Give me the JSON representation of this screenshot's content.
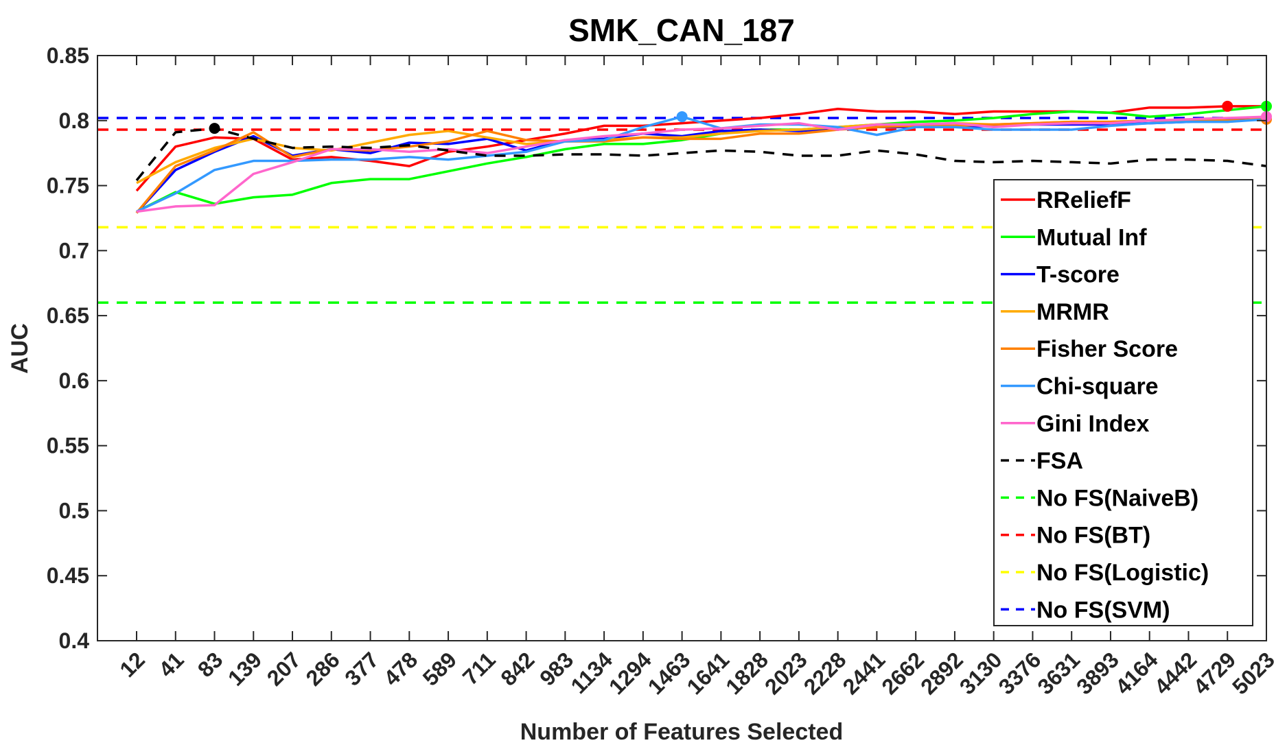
{
  "chart_data": {
    "type": "line",
    "title": "SMK_CAN_187",
    "xlabel": "Number of Features Selected",
    "ylabel": "AUC",
    "categories": [
      "12",
      "41",
      "83",
      "139",
      "207",
      "286",
      "377",
      "478",
      "589",
      "711",
      "842",
      "983",
      "1134",
      "1294",
      "1463",
      "1641",
      "1828",
      "2023",
      "2228",
      "2441",
      "2662",
      "2892",
      "3130",
      "3376",
      "3631",
      "3893",
      "4164",
      "4442",
      "4729",
      "5023"
    ],
    "ylim": [
      0.4,
      0.85
    ],
    "yticks": [
      "0.4",
      "0.45",
      "0.5",
      "0.55",
      "0.6",
      "0.65",
      "0.7",
      "0.75",
      "0.8",
      "0.85"
    ],
    "grid": false,
    "legend_position": "right",
    "series": [
      {
        "name": "RReliefF",
        "color": "#ff0000",
        "dash": "solid",
        "values": [
          0.746,
          0.78,
          0.787,
          0.786,
          0.77,
          0.772,
          0.769,
          0.765,
          0.776,
          0.78,
          0.785,
          0.79,
          0.796,
          0.796,
          0.798,
          0.8,
          0.802,
          0.805,
          0.809,
          0.807,
          0.807,
          0.805,
          0.807,
          0.807,
          0.807,
          0.806,
          0.81,
          0.81,
          0.811,
          0.811
        ]
      },
      {
        "name": "Mutual Inf",
        "color": "#00ff00",
        "dash": "solid",
        "values": [
          0.73,
          0.745,
          0.736,
          0.741,
          0.743,
          0.752,
          0.755,
          0.755,
          0.761,
          0.767,
          0.772,
          0.778,
          0.782,
          0.782,
          0.785,
          0.79,
          0.793,
          0.793,
          0.795,
          0.797,
          0.799,
          0.8,
          0.802,
          0.805,
          0.807,
          0.806,
          0.803,
          0.805,
          0.808,
          0.811
        ]
      },
      {
        "name": "T-score",
        "color": "#0000ff",
        "dash": "solid",
        "values": [
          0.729,
          0.762,
          0.776,
          0.788,
          0.773,
          0.778,
          0.775,
          0.783,
          0.782,
          0.786,
          0.777,
          0.785,
          0.786,
          0.79,
          0.788,
          0.792,
          0.793,
          0.792,
          0.794,
          0.795,
          0.795,
          0.795,
          0.796,
          0.797,
          0.797,
          0.797,
          0.798,
          0.799,
          0.801,
          0.801
        ]
      },
      {
        "name": "MRMR",
        "color": "#ffaa00",
        "dash": "solid",
        "values": [
          0.752,
          0.768,
          0.779,
          0.786,
          0.779,
          0.777,
          0.783,
          0.789,
          0.792,
          0.787,
          0.782,
          0.784,
          0.785,
          0.787,
          0.787,
          0.79,
          0.792,
          0.793,
          0.795,
          0.797,
          0.797,
          0.798,
          0.797,
          0.798,
          0.799,
          0.799,
          0.8,
          0.8,
          0.799,
          0.802
        ]
      },
      {
        "name": "Fisher Score",
        "color": "#ff8000",
        "dash": "solid",
        "values": [
          0.729,
          0.765,
          0.777,
          0.791,
          0.772,
          0.778,
          0.777,
          0.78,
          0.784,
          0.792,
          0.785,
          0.784,
          0.784,
          0.787,
          0.786,
          0.786,
          0.79,
          0.79,
          0.793,
          0.795,
          0.796,
          0.796,
          0.797,
          0.798,
          0.799,
          0.799,
          0.8,
          0.8,
          0.8,
          0.801
        ]
      },
      {
        "name": "Chi-square",
        "color": "#3399ff",
        "dash": "solid",
        "values": [
          0.73,
          0.744,
          0.762,
          0.769,
          0.769,
          0.77,
          0.77,
          0.772,
          0.77,
          0.773,
          0.776,
          0.784,
          0.785,
          0.795,
          0.803,
          0.794,
          0.797,
          0.797,
          0.795,
          0.789,
          0.795,
          0.795,
          0.793,
          0.793,
          0.793,
          0.796,
          0.798,
          0.799,
          0.799,
          0.801
        ]
      },
      {
        "name": "Gini Index",
        "color": "#ff66cc",
        "dash": "solid",
        "values": [
          0.73,
          0.734,
          0.735,
          0.759,
          0.768,
          0.778,
          0.778,
          0.776,
          0.778,
          0.775,
          0.78,
          0.785,
          0.788,
          0.79,
          0.793,
          0.794,
          0.796,
          0.798,
          0.793,
          0.797,
          0.797,
          0.798,
          0.795,
          0.797,
          0.798,
          0.798,
          0.8,
          0.801,
          0.802,
          0.803
        ]
      },
      {
        "name": "FSA",
        "color": "#000000",
        "dash": "dashed",
        "values": [
          0.754,
          0.791,
          0.794,
          0.786,
          0.779,
          0.78,
          0.779,
          0.781,
          0.777,
          0.773,
          0.773,
          0.774,
          0.774,
          0.773,
          0.775,
          0.777,
          0.776,
          0.773,
          0.773,
          0.777,
          0.774,
          0.769,
          0.768,
          0.769,
          0.768,
          0.767,
          0.77,
          0.77,
          0.769,
          0.765
        ]
      },
      {
        "name": "No FS(NaiveB)",
        "color": "#00ff00",
        "dash": "dashed",
        "constant": 0.66
      },
      {
        "name": "No FS(BT)",
        "color": "#ff0000",
        "dash": "dashed",
        "constant": 0.793
      },
      {
        "name": "No FS(Logistic)",
        "color": "#ffff00",
        "dash": "dashed",
        "constant": 0.718
      },
      {
        "name": "No FS(SVM)",
        "color": "#0000ff",
        "dash": "dashed",
        "constant": 0.802
      }
    ],
    "markers": [
      {
        "series": "FSA",
        "x": "83",
        "y": 0.794,
        "color": "#000000"
      },
      {
        "series": "Chi-square",
        "x": "1463",
        "y": 0.803,
        "color": "#3399ff"
      },
      {
        "series": "RReliefF",
        "x": "4729",
        "y": 0.811,
        "color": "#ff0000"
      },
      {
        "series": "Mutual Inf",
        "x": "5023",
        "y": 0.811,
        "color": "#00ff00"
      },
      {
        "series": "Fisher Score",
        "x": "5023",
        "y": 0.801,
        "color": "#ff8000"
      },
      {
        "series": "Gini Index",
        "x": "5023",
        "y": 0.803,
        "color": "#ff66cc"
      }
    ]
  }
}
